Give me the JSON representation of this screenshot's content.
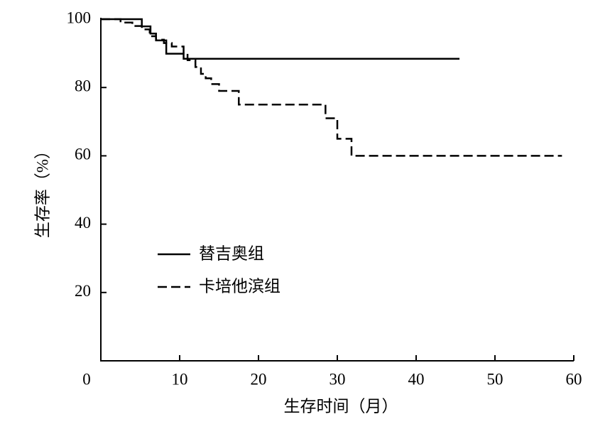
{
  "chart_data": {
    "type": "line",
    "step": "post",
    "xlabel": "生存时间（月）",
    "ylabel": "生存率（%）",
    "xlim": [
      0,
      60
    ],
    "ylim": [
      0,
      100
    ],
    "xticks": [
      0,
      10,
      20,
      30,
      40,
      50,
      60
    ],
    "yticks": [
      20,
      40,
      60,
      80,
      100
    ],
    "series": [
      {
        "name": "替吉奥组",
        "color": "#000000",
        "dash": false,
        "x": [
          0,
          5.2,
          6.3,
          7.0,
          8.3,
          10.5,
          45.5
        ],
        "values": [
          100,
          97.9,
          95.8,
          93.8,
          89.9,
          88.4,
          88.4
        ]
      },
      {
        "name": "卡培他滨组",
        "color": "#000000",
        "dash": true,
        "x": [
          0,
          2.5,
          4.0,
          5.2,
          6.2,
          7.0,
          8.0,
          9.0,
          10.5,
          11.0,
          12.0,
          12.7,
          13.3,
          14.0,
          15.0,
          17.5,
          28.5,
          30.0,
          31.8,
          58.5
        ],
        "values": [
          100,
          99,
          98,
          97,
          95,
          94,
          93,
          92,
          90,
          88,
          86,
          84,
          82.7,
          81,
          79,
          75,
          71,
          65,
          60,
          60
        ]
      }
    ]
  }
}
